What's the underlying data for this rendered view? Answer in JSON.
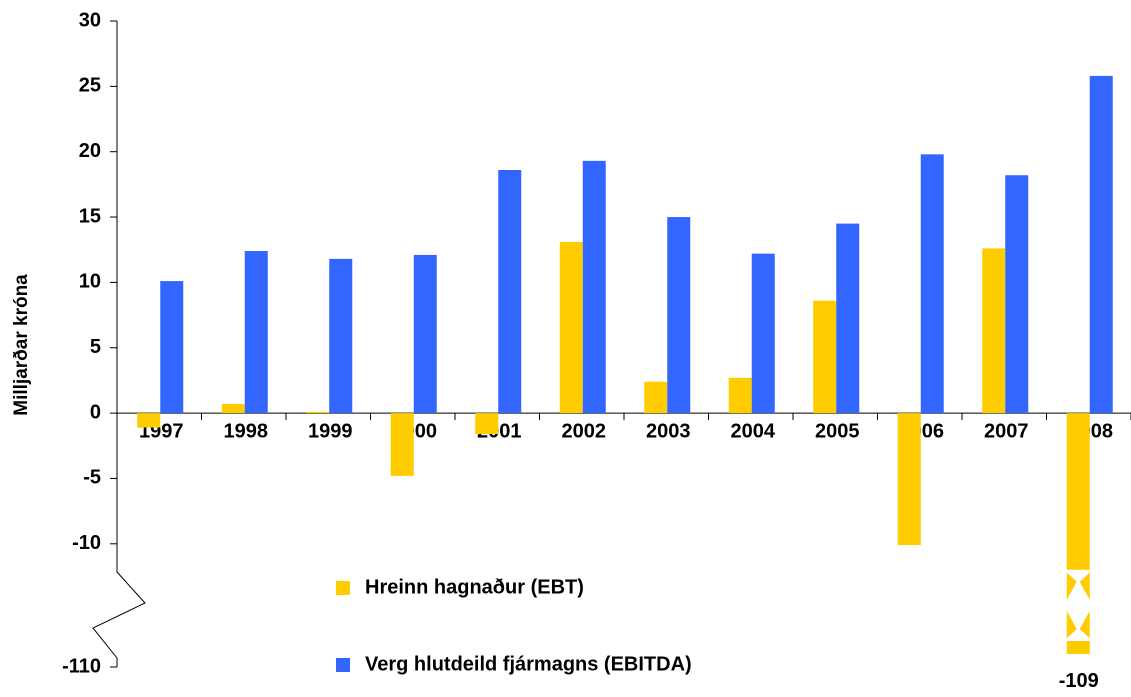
{
  "chart_data": {
    "type": "bar",
    "y_label": "Milljarðar króna",
    "categories": [
      "1997",
      "1998",
      "1999",
      "2000",
      "2001",
      "2002",
      "2003",
      "2004",
      "2005",
      "2006",
      "2007",
      "2008"
    ],
    "series": [
      {
        "name": "Hreinn hagnaður (EBT)",
        "color": "#ffcc00",
        "values": [
          -1.1,
          0.7,
          0.1,
          -4.8,
          -1.6,
          13.1,
          2.4,
          2.7,
          8.6,
          -10.1,
          12.6,
          -109
        ],
        "value_labels": [
          null,
          null,
          null,
          null,
          null,
          null,
          null,
          null,
          null,
          null,
          null,
          "-109"
        ]
      },
      {
        "name": "Verg hlutdeild fjármagns (EBITDA)",
        "color": "#3366ff",
        "values": [
          10.1,
          12.4,
          11.8,
          12.1,
          18.6,
          19.3,
          15.0,
          12.2,
          14.5,
          19.8,
          18.2,
          25.8
        ]
      }
    ],
    "ylim": [
      -110,
      30
    ],
    "yticks": [
      -110,
      -10,
      -5,
      0,
      5,
      10,
      15,
      20,
      25,
      30
    ],
    "legend": "bottom"
  }
}
